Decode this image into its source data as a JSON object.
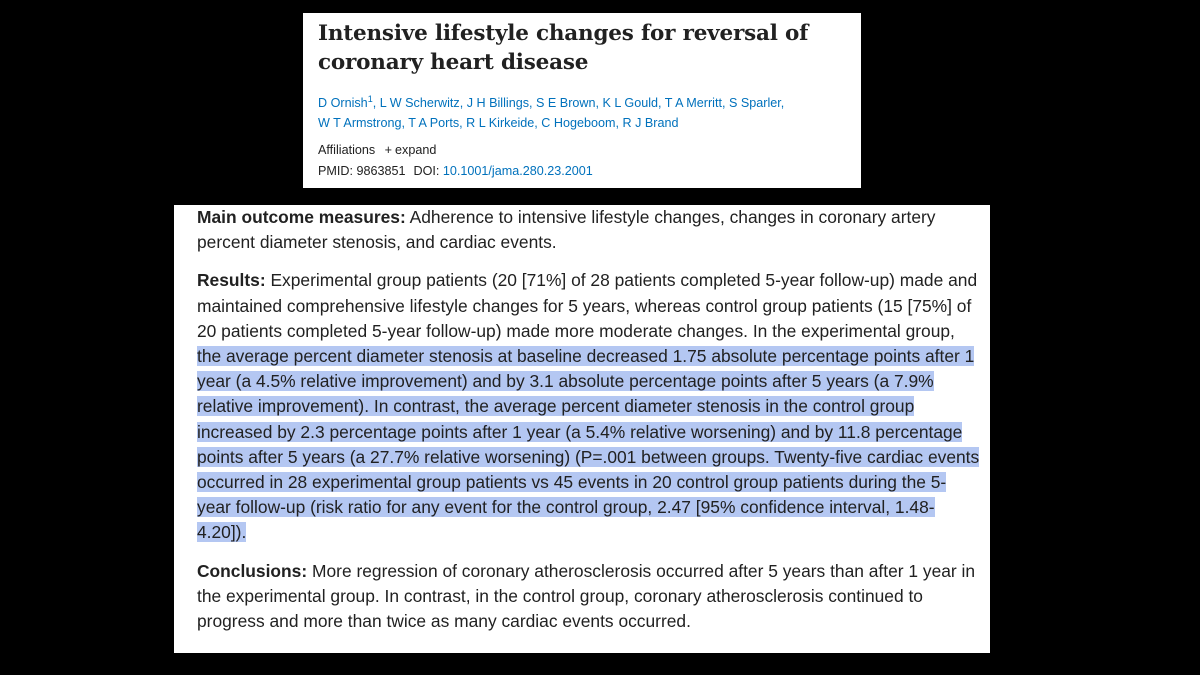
{
  "article": {
    "title": "Intensive lifestyle changes for reversal of coronary heart disease",
    "authors_line1_a": "D Ornish",
    "authors_sup": "1",
    "authors_line1_b": ", L W Scherwitz, J H Billings, S E Brown, K L Gould, T A Merritt, S Sparler,",
    "authors_line2": "W T Armstrong, T A Ports, R L Kirkeide, C Hogeboom, R J Brand",
    "affiliations_label": "Affiliations",
    "expand_icon": "+",
    "expand_label": "expand",
    "pmid_label": "PMID: 9863851",
    "doi_label": "DOI:",
    "doi_value": "10.1001/jama.280.23.2001"
  },
  "abstract": {
    "main_outcome_label": "Main outcome measures:",
    "main_outcome_text": " Adherence to intensive lifestyle changes, changes in coronary artery percent diameter stenosis, and cardiac events.",
    "results_label": "Results:",
    "results_text_plain": " Experimental group patients (20 [71%] of 28 patients completed 5-year follow-up) made and maintained comprehensive lifestyle changes for 5 years, whereas control group patients (15 [75%] of 20 patients completed 5-year follow-up) made more moderate changes. In the experimental group, ",
    "results_text_highlighted": "the average percent diameter stenosis at baseline decreased 1.75 absolute percentage points after 1 year (a 4.5% relative improvement) and by 3.1 absolute percentage points after 5 years (a 7.9% relative improvement). In contrast, the average percent diameter stenosis in the control group increased by 2.3 percentage points after 1 year (a 5.4% relative worsening) and by 11.8 percentage points after 5 years (a 27.7% relative worsening) (P=.001 between groups. Twenty-five cardiac events occurred in 28 experimental group patients vs 45 events in 20 control group patients during the 5-year follow-up (risk ratio for any event for the control group, 2.47 [95% confidence interval, 1.48-4.20]).",
    "conclusions_label": "Conclusions:",
    "conclusions_text": " More regression of coronary atherosclerosis occurred after 5 years than after 1 year in the experimental group. In contrast, in the control group, coronary atherosclerosis continued to progress and more than twice as many cardiac events occurred."
  },
  "colors": {
    "background": "#000000",
    "link": "#0071bc",
    "highlight": "#b4c7f2",
    "text": "#212121"
  }
}
